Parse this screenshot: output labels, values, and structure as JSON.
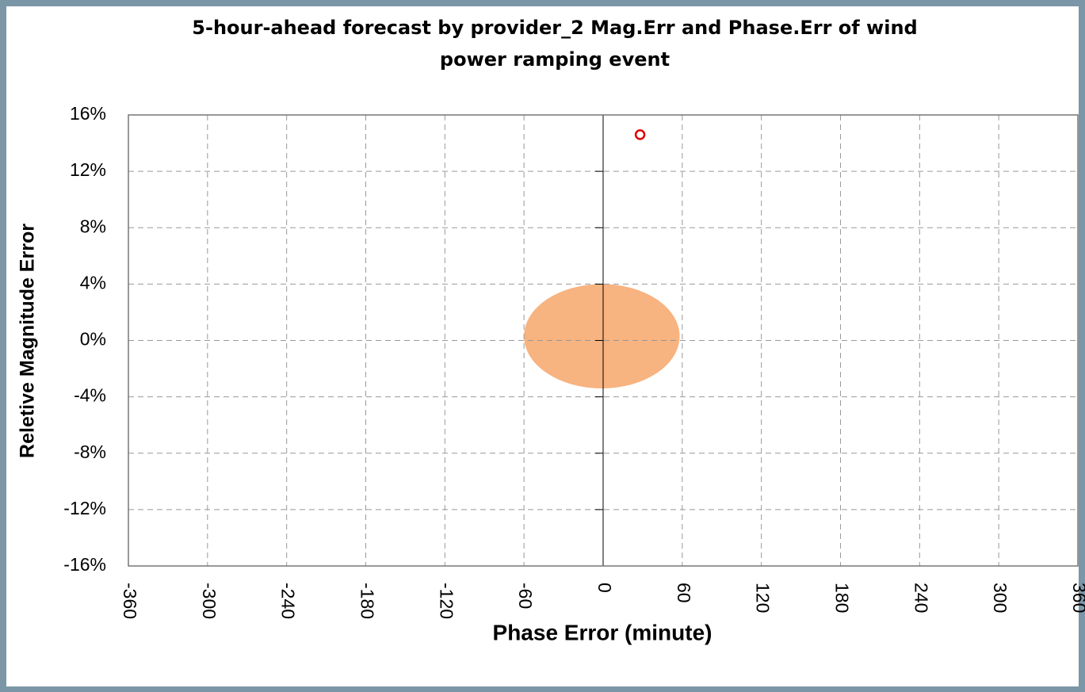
{
  "chart_data": {
    "type": "scatter",
    "title": [
      "5-hour-ahead forecast by provider_2 Mag.Err and Phase.Err of wind",
      "power ramping event"
    ],
    "xlabel": "Phase Error (minute)",
    "ylabel": "Reletive Magnitude Error",
    "series": [
      {
        "color": "#e00000",
        "x": [
          28
        ],
        "values": [
          14.6
        ]
      }
    ],
    "ellipse": {
      "color": "#f5a060",
      "cx": -1,
      "cy": 0.3,
      "rx": 59,
      "ry": 3.7
    },
    "xlim": [
      -360,
      360
    ],
    "xticks": [
      -360,
      -300,
      -240,
      -180,
      -120,
      -60,
      0,
      60,
      120,
      180,
      240,
      300,
      360
    ],
    "ylim": [
      -16,
      16
    ],
    "yticks": [
      {
        "value": -16,
        "label": "-16%"
      },
      {
        "value": -12,
        "label": "-12%"
      },
      {
        "value": -8,
        "label": "-8%"
      },
      {
        "value": -4,
        "label": "-4%"
      },
      {
        "value": 0,
        "label": "0%"
      },
      {
        "value": 4,
        "label": "4%"
      },
      {
        "value": 8,
        "label": "8%"
      },
      {
        "value": 12,
        "label": "12%"
      },
      {
        "value": 16,
        "label": "16%"
      }
    ],
    "grid": true
  }
}
